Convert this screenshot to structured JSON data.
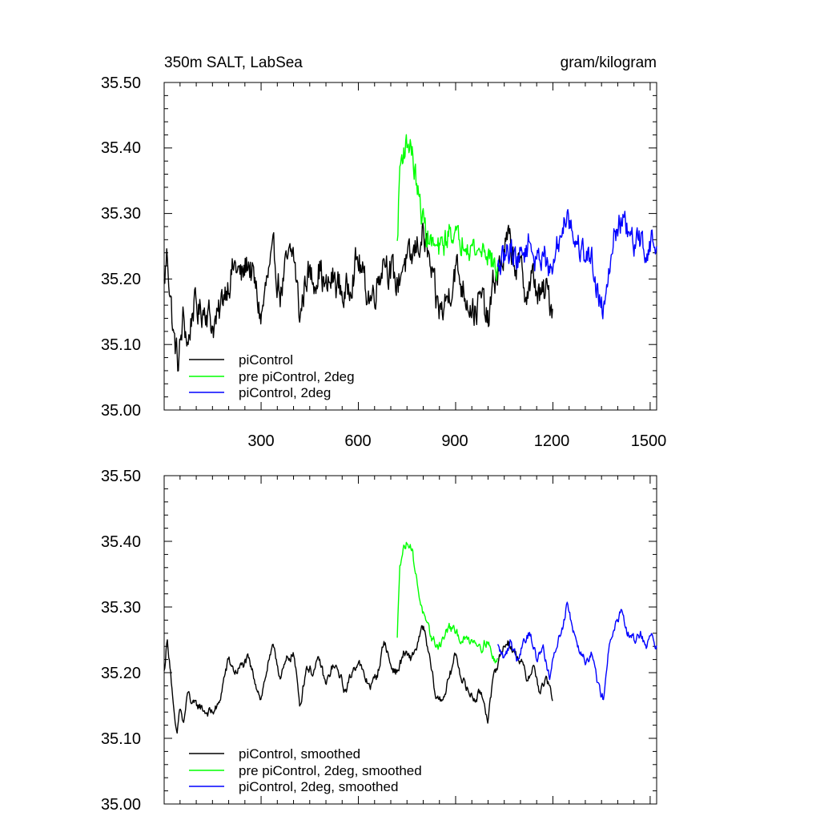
{
  "chart_data": [
    {
      "type": "line",
      "title_left": "350m SALT, LabSea",
      "title_right": "gram/kilogram",
      "xlim": [
        1,
        1520
      ],
      "ylim": [
        35.0,
        35.5
      ],
      "xticks": [
        300,
        600,
        900,
        1200,
        1500
      ],
      "yticks": [
        "35.00",
        "35.10",
        "35.20",
        "35.30",
        "35.40",
        "35.50"
      ],
      "legend": [
        "piControl",
        "pre piControl, 2deg",
        "piControl, 2deg"
      ],
      "series": [
        {
          "name": "piControl",
          "color": "#000000",
          "range": [
            1,
            1200
          ],
          "keypoints": [
            [
              1,
              35.19
            ],
            [
              10,
              35.24
            ],
            [
              20,
              35.18
            ],
            [
              30,
              35.11
            ],
            [
              45,
              35.07
            ],
            [
              60,
              35.14
            ],
            [
              75,
              35.1
            ],
            [
              90,
              35.16
            ],
            [
              110,
              35.15
            ],
            [
              130,
              35.16
            ],
            [
              150,
              35.13
            ],
            [
              170,
              35.14
            ],
            [
              185,
              35.18
            ],
            [
              200,
              35.2
            ],
            [
              220,
              35.22
            ],
            [
              240,
              35.2
            ],
            [
              260,
              35.23
            ],
            [
              280,
              35.19
            ],
            [
              300,
              35.14
            ],
            [
              320,
              35.2
            ],
            [
              340,
              35.23
            ],
            [
              360,
              35.18
            ],
            [
              380,
              35.22
            ],
            [
              400,
              35.24
            ],
            [
              420,
              35.14
            ],
            [
              440,
              35.21
            ],
            [
              460,
              35.2
            ],
            [
              480,
              35.22
            ],
            [
              500,
              35.18
            ],
            [
              520,
              35.2
            ],
            [
              540,
              35.19
            ],
            [
              560,
              35.17
            ],
            [
              580,
              35.21
            ],
            [
              600,
              35.23
            ],
            [
              620,
              35.19
            ],
            [
              640,
              35.17
            ],
            [
              660,
              35.2
            ],
            [
              680,
              35.24
            ],
            [
              700,
              35.21
            ],
            [
              720,
              35.19
            ],
            [
              740,
              35.23
            ],
            [
              760,
              35.22
            ],
            [
              780,
              35.25
            ],
            [
              800,
              35.27
            ],
            [
              820,
              35.22
            ],
            [
              840,
              35.16
            ],
            [
              860,
              35.15
            ],
            [
              880,
              35.18
            ],
            [
              900,
              35.22
            ],
            [
              920,
              35.19
            ],
            [
              940,
              35.17
            ],
            [
              960,
              35.15
            ],
            [
              980,
              35.17
            ],
            [
              1000,
              35.13
            ],
            [
              1020,
              35.2
            ],
            [
              1040,
              35.22
            ],
            [
              1060,
              35.26
            ],
            [
              1080,
              35.23
            ],
            [
              1100,
              35.21
            ],
            [
              1120,
              35.18
            ],
            [
              1140,
              35.2
            ],
            [
              1160,
              35.17
            ],
            [
              1180,
              35.18
            ],
            [
              1200,
              35.16
            ]
          ],
          "noise": 0.022
        },
        {
          "name": "pre piControl, 2deg",
          "color": "#00ff00",
          "range": [
            720,
            1030
          ],
          "keypoints": [
            [
              720,
              35.25
            ],
            [
              728,
              35.37
            ],
            [
              740,
              35.4
            ],
            [
              760,
              35.41
            ],
            [
              775,
              35.36
            ],
            [
              790,
              35.31
            ],
            [
              810,
              35.27
            ],
            [
              830,
              35.25
            ],
            [
              850,
              35.24
            ],
            [
              870,
              35.26
            ],
            [
              890,
              35.28
            ],
            [
              910,
              35.25
            ],
            [
              930,
              35.27
            ],
            [
              950,
              35.25
            ],
            [
              970,
              35.24
            ],
            [
              990,
              35.25
            ],
            [
              1010,
              35.23
            ],
            [
              1030,
              35.21
            ]
          ],
          "noise": 0.018
        },
        {
          "name": "piControl, 2deg",
          "color": "#0000ff",
          "range": [
            1030,
            1520
          ],
          "keypoints": [
            [
              1030,
              35.21
            ],
            [
              1050,
              35.23
            ],
            [
              1070,
              35.25
            ],
            [
              1090,
              35.23
            ],
            [
              1110,
              35.24
            ],
            [
              1130,
              35.26
            ],
            [
              1150,
              35.22
            ],
            [
              1170,
              35.25
            ],
            [
              1190,
              35.2
            ],
            [
              1210,
              35.24
            ],
            [
              1230,
              35.28
            ],
            [
              1245,
              35.31
            ],
            [
              1260,
              35.27
            ],
            [
              1280,
              35.25
            ],
            [
              1300,
              35.24
            ],
            [
              1320,
              35.23
            ],
            [
              1340,
              35.18
            ],
            [
              1355,
              35.15
            ],
            [
              1370,
              35.22
            ],
            [
              1390,
              35.27
            ],
            [
              1410,
              35.29
            ],
            [
              1430,
              35.27
            ],
            [
              1450,
              35.25
            ],
            [
              1470,
              35.26
            ],
            [
              1490,
              35.24
            ],
            [
              1505,
              35.26
            ],
            [
              1520,
              35.24
            ]
          ],
          "noise": 0.018
        }
      ]
    },
    {
      "type": "line",
      "xlim": [
        1,
        1520
      ],
      "ylim": [
        35.0,
        35.5
      ],
      "yticks": [
        "35.00",
        "35.10",
        "35.20",
        "35.30",
        "35.40",
        "35.50"
      ],
      "legend": [
        "piControl, smoothed",
        "pre piControl, 2deg, smoothed",
        "piControl, 2deg, smoothed"
      ],
      "series": [
        {
          "name": "piControl, smoothed",
          "color": "#000000",
          "range": [
            1,
            1200
          ],
          "keypoints": [
            [
              1,
              35.2
            ],
            [
              10,
              35.25
            ],
            [
              20,
              35.21
            ],
            [
              30,
              35.14
            ],
            [
              40,
              35.1
            ],
            [
              50,
              35.15
            ],
            [
              60,
              35.12
            ],
            [
              75,
              35.17
            ],
            [
              90,
              35.15
            ],
            [
              110,
              35.15
            ],
            [
              130,
              35.14
            ],
            [
              150,
              35.14
            ],
            [
              170,
              35.15
            ],
            [
              185,
              35.19
            ],
            [
              200,
              35.22
            ],
            [
              220,
              35.2
            ],
            [
              240,
              35.21
            ],
            [
              260,
              35.22
            ],
            [
              280,
              35.19
            ],
            [
              300,
              35.16
            ],
            [
              320,
              35.21
            ],
            [
              340,
              35.24
            ],
            [
              360,
              35.19
            ],
            [
              380,
              35.22
            ],
            [
              400,
              35.23
            ],
            [
              420,
              35.15
            ],
            [
              440,
              35.21
            ],
            [
              460,
              35.2
            ],
            [
              480,
              35.22
            ],
            [
              500,
              35.18
            ],
            [
              520,
              35.21
            ],
            [
              540,
              35.2
            ],
            [
              560,
              35.17
            ],
            [
              580,
              35.2
            ],
            [
              600,
              35.22
            ],
            [
              620,
              35.19
            ],
            [
              640,
              35.18
            ],
            [
              660,
              35.2
            ],
            [
              680,
              35.25
            ],
            [
              700,
              35.21
            ],
            [
              720,
              35.2
            ],
            [
              740,
              35.23
            ],
            [
              760,
              35.22
            ],
            [
              780,
              35.24
            ],
            [
              800,
              35.27
            ],
            [
              820,
              35.22
            ],
            [
              840,
              35.16
            ],
            [
              860,
              35.16
            ],
            [
              880,
              35.19
            ],
            [
              900,
              35.23
            ],
            [
              920,
              35.19
            ],
            [
              940,
              35.17
            ],
            [
              960,
              35.16
            ],
            [
              980,
              35.17
            ],
            [
              1000,
              35.13
            ],
            [
              1020,
              35.2
            ],
            [
              1040,
              35.23
            ],
            [
              1060,
              35.25
            ],
            [
              1080,
              35.23
            ],
            [
              1100,
              35.22
            ],
            [
              1120,
              35.19
            ],
            [
              1140,
              35.21
            ],
            [
              1160,
              35.17
            ],
            [
              1180,
              35.19
            ],
            [
              1200,
              35.16
            ]
          ],
          "noise": 0.006
        },
        {
          "name": "pre piControl, 2deg, smoothed",
          "color": "#00ff00",
          "range": [
            720,
            1030
          ],
          "keypoints": [
            [
              720,
              35.25
            ],
            [
              728,
              35.37
            ],
            [
              740,
              35.39
            ],
            [
              755,
              35.4
            ],
            [
              765,
              35.39
            ],
            [
              780,
              35.34
            ],
            [
              795,
              35.3
            ],
            [
              810,
              35.27
            ],
            [
              830,
              35.25
            ],
            [
              845,
              35.24
            ],
            [
              860,
              35.25
            ],
            [
              880,
              35.27
            ],
            [
              900,
              35.26
            ],
            [
              920,
              35.25
            ],
            [
              940,
              35.25
            ],
            [
              960,
              35.25
            ],
            [
              980,
              35.24
            ],
            [
              1000,
              35.25
            ],
            [
              1015,
              35.22
            ],
            [
              1030,
              35.22
            ]
          ],
          "noise": 0.006
        },
        {
          "name": "piControl, 2deg, smoothed",
          "color": "#0000ff",
          "range": [
            1030,
            1520
          ],
          "keypoints": [
            [
              1030,
              35.24
            ],
            [
              1050,
              35.22
            ],
            [
              1070,
              35.25
            ],
            [
              1090,
              35.22
            ],
            [
              1110,
              35.25
            ],
            [
              1130,
              35.26
            ],
            [
              1150,
              35.22
            ],
            [
              1170,
              35.24
            ],
            [
              1190,
              35.19
            ],
            [
              1210,
              35.24
            ],
            [
              1230,
              35.27
            ],
            [
              1245,
              35.31
            ],
            [
              1260,
              35.27
            ],
            [
              1280,
              35.24
            ],
            [
              1300,
              35.22
            ],
            [
              1320,
              35.23
            ],
            [
              1340,
              35.18
            ],
            [
              1355,
              35.16
            ],
            [
              1370,
              35.23
            ],
            [
              1390,
              35.27
            ],
            [
              1410,
              35.29
            ],
            [
              1430,
              35.26
            ],
            [
              1450,
              35.25
            ],
            [
              1470,
              35.26
            ],
            [
              1490,
              35.24
            ],
            [
              1505,
              35.26
            ],
            [
              1520,
              35.24
            ]
          ],
          "noise": 0.006
        }
      ]
    }
  ]
}
